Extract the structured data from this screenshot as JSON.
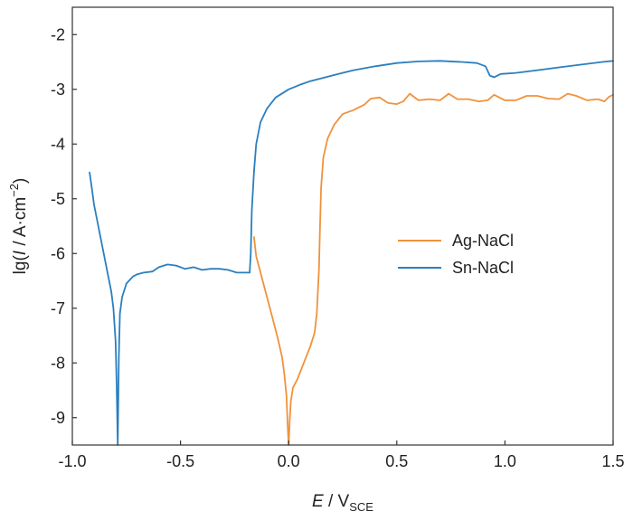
{
  "chart_data": {
    "type": "line",
    "xlabel": {
      "main": "E",
      "sep": " / V",
      "sub": "SCE"
    },
    "ylabel": {
      "pre": "lg(",
      "var": "I",
      "mid": " / A·cm",
      "sup": "−2",
      "post": ")"
    },
    "xlim": [
      -1.0,
      1.5
    ],
    "ylim": [
      -9.5,
      -1.5
    ],
    "xticks": [
      -1.0,
      -0.5,
      0.0,
      0.5,
      1.0,
      1.5
    ],
    "xtick_labels": [
      "-1.0",
      "-0.5",
      "0.0",
      "0.5",
      "1.0",
      "1.5"
    ],
    "yticks": [
      -2,
      -3,
      -4,
      -5,
      -6,
      -7,
      -8,
      -9
    ],
    "ytick_labels": [
      "-2",
      "-3",
      "-4",
      "-5",
      "-6",
      "-7",
      "-8",
      "-9"
    ],
    "grid": false,
    "legend_position": "right-middle",
    "series": [
      {
        "name": "Ag-NaCl",
        "color": "#f0923b",
        "points": [
          [
            -0.16,
            -5.7
          ],
          [
            -0.15,
            -6.05
          ],
          [
            -0.13,
            -6.35
          ],
          [
            -0.11,
            -6.65
          ],
          [
            -0.09,
            -6.95
          ],
          [
            -0.07,
            -7.25
          ],
          [
            -0.05,
            -7.55
          ],
          [
            -0.03,
            -7.9
          ],
          [
            -0.02,
            -8.2
          ],
          [
            -0.01,
            -8.6
          ],
          [
            -0.005,
            -9.1
          ],
          [
            0.0,
            -9.5
          ],
          [
            0.005,
            -9.05
          ],
          [
            0.01,
            -8.7
          ],
          [
            0.02,
            -8.45
          ],
          [
            0.04,
            -8.3
          ],
          [
            0.06,
            -8.1
          ],
          [
            0.08,
            -7.9
          ],
          [
            0.1,
            -7.7
          ],
          [
            0.12,
            -7.45
          ],
          [
            0.13,
            -7.1
          ],
          [
            0.14,
            -6.3
          ],
          [
            0.145,
            -5.5
          ],
          [
            0.15,
            -4.8
          ],
          [
            0.16,
            -4.25
          ],
          [
            0.18,
            -3.9
          ],
          [
            0.21,
            -3.65
          ],
          [
            0.25,
            -3.45
          ],
          [
            0.3,
            -3.38
          ],
          [
            0.35,
            -3.28
          ],
          [
            0.38,
            -3.17
          ],
          [
            0.42,
            -3.15
          ],
          [
            0.46,
            -3.25
          ],
          [
            0.5,
            -3.27
          ],
          [
            0.53,
            -3.22
          ],
          [
            0.56,
            -3.08
          ],
          [
            0.6,
            -3.2
          ],
          [
            0.65,
            -3.18
          ],
          [
            0.7,
            -3.2
          ],
          [
            0.74,
            -3.08
          ],
          [
            0.78,
            -3.18
          ],
          [
            0.83,
            -3.18
          ],
          [
            0.88,
            -3.22
          ],
          [
            0.92,
            -3.2
          ],
          [
            0.95,
            -3.1
          ],
          [
            1.0,
            -3.2
          ],
          [
            1.05,
            -3.2
          ],
          [
            1.1,
            -3.12
          ],
          [
            1.15,
            -3.12
          ],
          [
            1.2,
            -3.17
          ],
          [
            1.25,
            -3.18
          ],
          [
            1.29,
            -3.08
          ],
          [
            1.33,
            -3.12
          ],
          [
            1.38,
            -3.2
          ],
          [
            1.43,
            -3.18
          ],
          [
            1.46,
            -3.22
          ],
          [
            1.48,
            -3.14
          ],
          [
            1.5,
            -3.1
          ]
        ]
      },
      {
        "name": "Sn-NaCl",
        "color": "#2a7fbf",
        "points": [
          [
            -0.92,
            -4.52
          ],
          [
            -0.91,
            -4.8
          ],
          [
            -0.9,
            -5.1
          ],
          [
            -0.88,
            -5.5
          ],
          [
            -0.86,
            -5.9
          ],
          [
            -0.84,
            -6.3
          ],
          [
            -0.82,
            -6.7
          ],
          [
            -0.81,
            -7.0
          ],
          [
            -0.8,
            -7.6
          ],
          [
            -0.795,
            -8.4
          ],
          [
            -0.79,
            -9.5
          ],
          [
            -0.785,
            -7.9
          ],
          [
            -0.78,
            -7.1
          ],
          [
            -0.77,
            -6.8
          ],
          [
            -0.75,
            -6.55
          ],
          [
            -0.72,
            -6.42
          ],
          [
            -0.7,
            -6.38
          ],
          [
            -0.67,
            -6.35
          ],
          [
            -0.63,
            -6.33
          ],
          [
            -0.6,
            -6.25
          ],
          [
            -0.56,
            -6.2
          ],
          [
            -0.52,
            -6.22
          ],
          [
            -0.48,
            -6.28
          ],
          [
            -0.44,
            -6.25
          ],
          [
            -0.4,
            -6.3
          ],
          [
            -0.36,
            -6.28
          ],
          [
            -0.32,
            -6.28
          ],
          [
            -0.28,
            -6.3
          ],
          [
            -0.24,
            -6.35
          ],
          [
            -0.2,
            -6.35
          ],
          [
            -0.18,
            -6.35
          ],
          [
            -0.175,
            -6.0
          ],
          [
            -0.17,
            -5.2
          ],
          [
            -0.16,
            -4.5
          ],
          [
            -0.15,
            -4.0
          ],
          [
            -0.13,
            -3.6
          ],
          [
            -0.1,
            -3.35
          ],
          [
            -0.06,
            -3.15
          ],
          [
            0.0,
            -3.0
          ],
          [
            0.05,
            -2.92
          ],
          [
            0.1,
            -2.85
          ],
          [
            0.2,
            -2.75
          ],
          [
            0.3,
            -2.65
          ],
          [
            0.4,
            -2.58
          ],
          [
            0.5,
            -2.52
          ],
          [
            0.6,
            -2.49
          ],
          [
            0.7,
            -2.48
          ],
          [
            0.8,
            -2.5
          ],
          [
            0.87,
            -2.52
          ],
          [
            0.91,
            -2.58
          ],
          [
            0.93,
            -2.75
          ],
          [
            0.95,
            -2.78
          ],
          [
            0.98,
            -2.72
          ],
          [
            1.05,
            -2.7
          ],
          [
            1.15,
            -2.65
          ],
          [
            1.25,
            -2.6
          ],
          [
            1.35,
            -2.55
          ],
          [
            1.45,
            -2.5
          ],
          [
            1.5,
            -2.48
          ]
        ]
      }
    ]
  }
}
